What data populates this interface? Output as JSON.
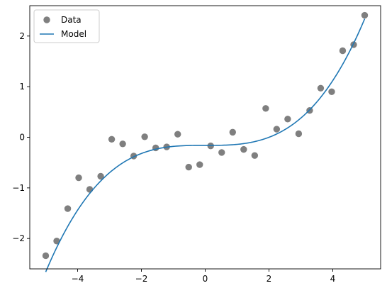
{
  "chart_data": {
    "type": "scatter",
    "title": "",
    "xlabel": "",
    "ylabel": "",
    "xlim": [
      -5.5,
      5.5
    ],
    "ylim": [
      -2.6,
      2.6
    ],
    "xticks": [
      -4,
      -2,
      0,
      2,
      4
    ],
    "yticks": [
      -2,
      -1,
      0,
      1,
      2
    ],
    "xtick_labels": [
      "−4",
      "−2",
      "0",
      "2",
      "4"
    ],
    "ytick_labels": [
      "−2",
      "−1",
      "0",
      "1",
      "2"
    ],
    "grid": false,
    "legend": {
      "placement": "top-left",
      "entries": [
        {
          "label": "Data",
          "marker": "circle",
          "color": "#7f7f7f"
        },
        {
          "label": "Model",
          "marker": "line",
          "color": "#1f77b4"
        }
      ]
    },
    "series": [
      {
        "name": "Data",
        "kind": "scatter",
        "color": "#7f7f7f",
        "x": [
          -5.0,
          -4.655,
          -4.31,
          -3.966,
          -3.621,
          -3.276,
          -2.931,
          -2.586,
          -2.241,
          -1.897,
          -1.552,
          -1.207,
          -0.862,
          -0.517,
          -0.172,
          0.172,
          0.517,
          0.862,
          1.207,
          1.552,
          1.897,
          2.241,
          2.586,
          2.931,
          3.276,
          3.621,
          3.966,
          4.31,
          4.655,
          5.0
        ],
        "y": [
          -2.34,
          -2.05,
          -1.41,
          -0.8,
          -1.03,
          -0.77,
          -0.04,
          -0.13,
          -0.37,
          0.01,
          -0.21,
          -0.19,
          0.06,
          -0.59,
          -0.54,
          -0.17,
          -0.3,
          0.1,
          -0.24,
          -0.36,
          0.57,
          0.16,
          0.36,
          0.07,
          0.53,
          0.97,
          0.9,
          1.71,
          1.83,
          2.41
        ]
      },
      {
        "name": "Model",
        "kind": "line",
        "color": "#1f77b4",
        "x_range": [
          -5.0,
          5.0
        ],
        "model": "cubic",
        "coefficients": {
          "a3": 0.02,
          "a2": 0.0,
          "a1": 0.0,
          "a0": -0.16
        }
      }
    ]
  }
}
